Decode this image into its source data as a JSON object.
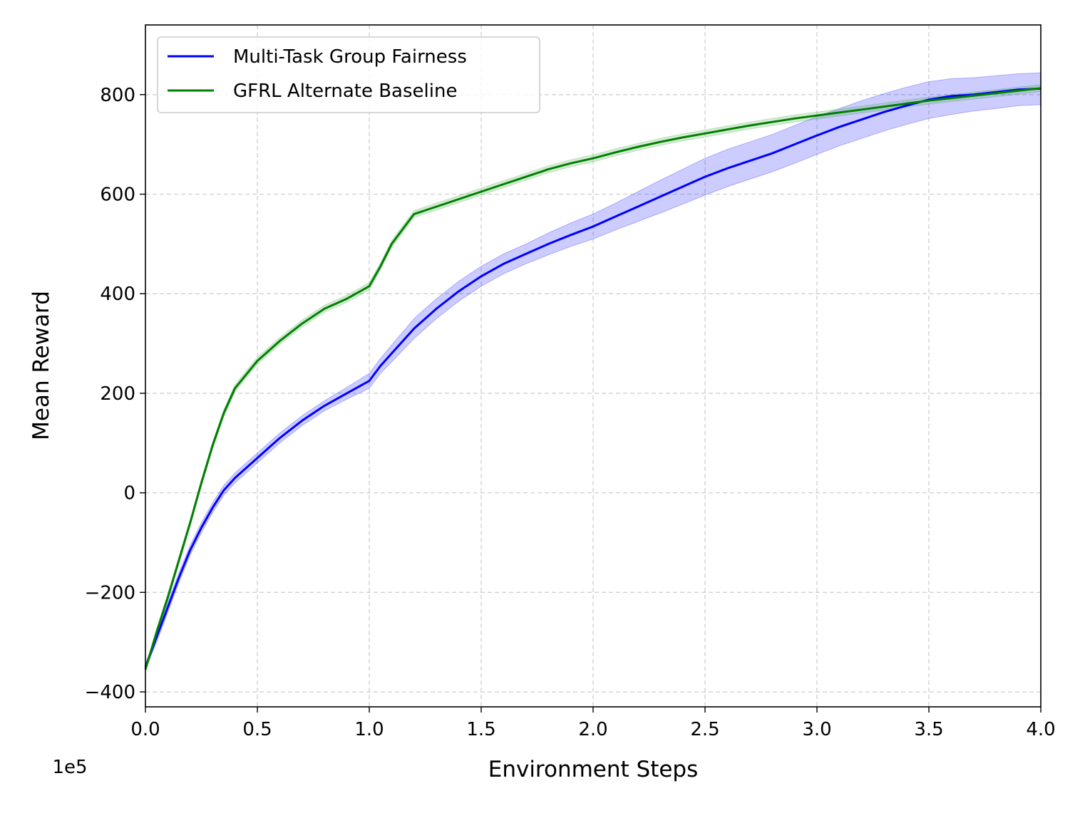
{
  "chart_data": {
    "type": "line",
    "xlabel": "Environment Steps",
    "ylabel": "Mean Reward",
    "x_offset_text": "1e5",
    "xlim": [
      0,
      4.0
    ],
    "ylim": [
      -430,
      940
    ],
    "xticks": [
      {
        "value": 0.0,
        "label": "0.0"
      },
      {
        "value": 0.5,
        "label": "0.5"
      },
      {
        "value": 1.0,
        "label": "1.0"
      },
      {
        "value": 1.5,
        "label": "1.5"
      },
      {
        "value": 2.0,
        "label": "2.0"
      },
      {
        "value": 2.5,
        "label": "2.5"
      },
      {
        "value": 3.0,
        "label": "3.0"
      },
      {
        "value": 3.5,
        "label": "3.5"
      },
      {
        "value": 4.0,
        "label": "4.0"
      }
    ],
    "yticks": [
      {
        "value": -400,
        "label": "−400"
      },
      {
        "value": -200,
        "label": "−200"
      },
      {
        "value": 0,
        "label": "0"
      },
      {
        "value": 200,
        "label": "200"
      },
      {
        "value": 400,
        "label": "400"
      },
      {
        "value": 600,
        "label": "600"
      },
      {
        "value": 800,
        "label": "800"
      }
    ],
    "grid": true,
    "legend_position": "top-left",
    "series": [
      {
        "name": "Multi-Task Group Fairness",
        "color": "#0000ff",
        "band_color": "#0000ff",
        "x": [
          0.0,
          0.05,
          0.1,
          0.15,
          0.2,
          0.25,
          0.3,
          0.35,
          0.4,
          0.5,
          0.6,
          0.7,
          0.8,
          0.9,
          1.0,
          1.05,
          1.1,
          1.2,
          1.3,
          1.4,
          1.5,
          1.6,
          1.7,
          1.8,
          1.9,
          2.0,
          2.1,
          2.2,
          2.3,
          2.4,
          2.5,
          2.6,
          2.7,
          2.8,
          2.9,
          3.0,
          3.1,
          3.2,
          3.3,
          3.4,
          3.5,
          3.6,
          3.7,
          3.8,
          3.9,
          4.0
        ],
        "y": [
          -350,
          -290,
          -230,
          -170,
          -115,
          -70,
          -30,
          5,
          30,
          70,
          110,
          145,
          175,
          200,
          225,
          255,
          280,
          330,
          370,
          405,
          435,
          460,
          480,
          500,
          518,
          535,
          555,
          575,
          595,
          615,
          635,
          652,
          667,
          682,
          700,
          718,
          735,
          750,
          765,
          778,
          790,
          797,
          800,
          805,
          810,
          812
        ],
        "lower": [
          -355,
          -300,
          -240,
          -180,
          -125,
          -80,
          -40,
          -5,
          20,
          60,
          100,
          135,
          165,
          188,
          210,
          240,
          263,
          310,
          350,
          385,
          415,
          440,
          460,
          478,
          495,
          510,
          528,
          545,
          562,
          580,
          598,
          615,
          630,
          645,
          662,
          680,
          697,
          712,
          727,
          740,
          752,
          760,
          767,
          772,
          778,
          780
        ],
        "upper": [
          -345,
          -280,
          -220,
          -160,
          -105,
          -60,
          -20,
          15,
          40,
          80,
          120,
          155,
          185,
          212,
          240,
          270,
          297,
          350,
          390,
          425,
          455,
          480,
          500,
          522,
          542,
          560,
          582,
          605,
          628,
          650,
          672,
          690,
          705,
          720,
          738,
          756,
          772,
          788,
          802,
          815,
          826,
          832,
          834,
          838,
          842,
          844
        ]
      },
      {
        "name": "GFRL Alternate Baseline",
        "color": "#008000",
        "band_color": "#2ca02c",
        "x": [
          0.0,
          0.05,
          0.1,
          0.15,
          0.2,
          0.25,
          0.3,
          0.35,
          0.4,
          0.5,
          0.6,
          0.7,
          0.8,
          0.9,
          1.0,
          1.05,
          1.1,
          1.2,
          1.3,
          1.4,
          1.5,
          1.6,
          1.7,
          1.8,
          1.9,
          2.0,
          2.1,
          2.2,
          2.3,
          2.4,
          2.5,
          2.6,
          2.7,
          2.8,
          2.9,
          3.0,
          3.1,
          3.2,
          3.3,
          3.4,
          3.5,
          3.6,
          3.7,
          3.8,
          3.9,
          4.0
        ],
        "y": [
          -355,
          -280,
          -210,
          -135,
          -60,
          20,
          95,
          160,
          210,
          265,
          305,
          340,
          370,
          390,
          415,
          455,
          500,
          560,
          575,
          590,
          605,
          620,
          635,
          650,
          662,
          672,
          684,
          695,
          705,
          714,
          722,
          730,
          738,
          745,
          752,
          758,
          764,
          770,
          776,
          782,
          788,
          793,
          798,
          803,
          808,
          813
        ],
        "lower": [
          -360,
          -287,
          -217,
          -142,
          -67,
          13,
          88,
          153,
          203,
          258,
          298,
          333,
          363,
          383,
          408,
          448,
          493,
          553,
          568,
          583,
          598,
          613,
          628,
          643,
          655,
          665,
          677,
          688,
          698,
          707,
          715,
          723,
          731,
          738,
          745,
          751,
          757,
          763,
          769,
          775,
          781,
          786,
          791,
          796,
          801,
          806
        ],
        "upper": [
          -350,
          -273,
          -203,
          -128,
          -53,
          27,
          102,
          167,
          217,
          272,
          312,
          347,
          377,
          397,
          422,
          462,
          507,
          567,
          582,
          597,
          612,
          627,
          642,
          657,
          669,
          679,
          691,
          702,
          712,
          721,
          729,
          737,
          745,
          752,
          759,
          765,
          771,
          777,
          783,
          789,
          795,
          800,
          805,
          810,
          815,
          820
        ]
      }
    ]
  }
}
